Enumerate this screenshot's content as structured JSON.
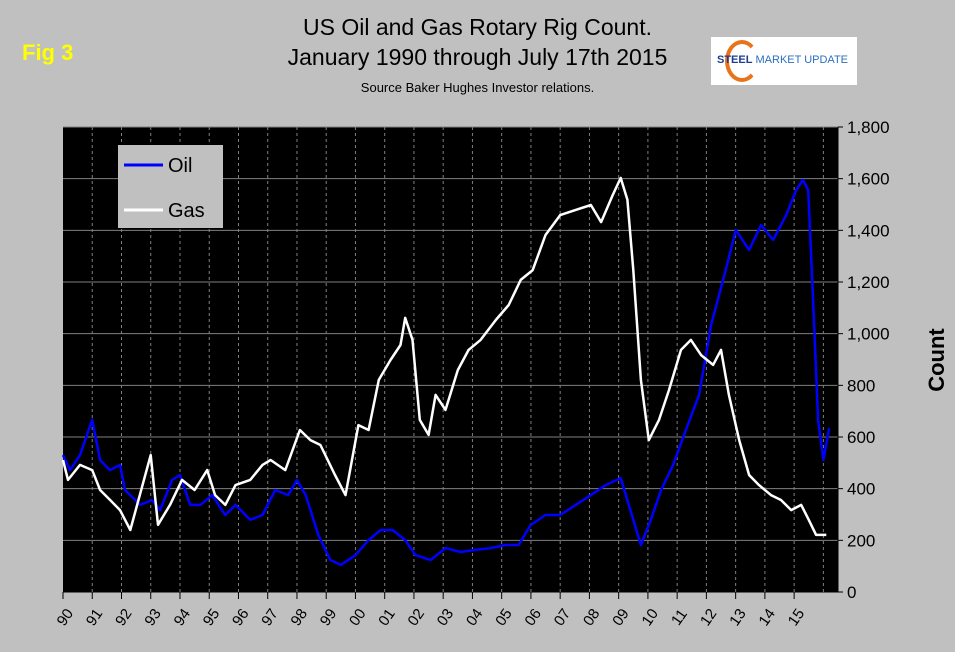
{
  "figure_label": "Fig 3",
  "logo": {
    "text_bold": "STEEL",
    "text_rest": "MARKET UPDATE"
  },
  "chart_data": {
    "type": "line",
    "title": "US Oil and Gas Rotary Rig Count.",
    "subtitle": "January 1990 through July 17th 2015",
    "source": "Source Baker Hughes Investor relations.",
    "xlabel": "",
    "ylabel": "Count",
    "xlim": [
      1990,
      2016.5
    ],
    "ylim": [
      0,
      1800
    ],
    "x_tick_labels": [
      "90",
      "91",
      "92",
      "93",
      "94",
      "95",
      "96",
      "97",
      "98",
      "99",
      "00",
      "01",
      "02",
      "03",
      "04",
      "05",
      "06",
      "07",
      "08",
      "09",
      "10",
      "11",
      "12",
      "13",
      "14",
      "15"
    ],
    "y_ticks": [
      0,
      200,
      400,
      600,
      800,
      1000,
      1200,
      1400,
      1600,
      1800
    ],
    "y_tick_labels": [
      "0",
      "200",
      "400",
      "600",
      "800",
      "1,000",
      "1,200",
      "1,400",
      "1,600",
      "1,800"
    ],
    "grid": true,
    "background": "#000000",
    "legend": {
      "placement": "top-left"
    },
    "series": [
      {
        "name": "Oil",
        "color": "#0000ff",
        "x": [
          1990,
          1990.24,
          1990.58,
          1991,
          1991.27,
          1991.6,
          1991.95,
          1992.12,
          1992.64,
          1993.05,
          1993.32,
          1993.73,
          1994,
          1994.35,
          1994.7,
          1995.1,
          1995.55,
          1995.9,
          1996.4,
          1996.82,
          1997.26,
          1997.7,
          1998,
          1998.3,
          1998.73,
          1999.14,
          1999.5,
          2000,
          2000.45,
          2000.86,
          2001.27,
          2001.7,
          2002.05,
          2002.57,
          2003.08,
          2003.6,
          2004.1,
          2004.62,
          2005.13,
          2005.58,
          2005.99,
          2006.5,
          2007,
          2007.53,
          2008.05,
          2008.56,
          2009.07,
          2009.5,
          2009.76,
          2010.1,
          2010.45,
          2010.86,
          2011.3,
          2011.75,
          2012.16,
          2012.57,
          2013.01,
          2013.46,
          2013.87,
          2014.28,
          2014.73,
          2015.07,
          2015.3,
          2015.48,
          2015.65,
          2015.82,
          2016,
          2016.2
        ],
        "y": [
          530,
          472,
          530,
          666,
          511,
          472,
          492,
          395,
          337,
          356,
          317,
          434,
          453,
          337,
          337,
          375,
          298,
          337,
          279,
          298,
          395,
          375,
          434,
          375,
          221,
          124,
          105,
          143,
          201,
          240,
          240,
          201,
          143,
          124,
          170,
          155,
          163,
          170,
          182,
          182,
          259,
          298,
          298,
          337,
          375,
          414,
          441,
          279,
          182,
          279,
          395,
          492,
          627,
          763,
          1034,
          1208,
          1401,
          1324,
          1421,
          1363,
          1459,
          1556,
          1595,
          1556,
          1130,
          666,
          511,
          635
        ]
      },
      {
        "name": "Gas",
        "color": "#ffffff",
        "x": [
          1990,
          1990.17,
          1990.58,
          1991,
          1991.27,
          1991.61,
          1991.95,
          1992.3,
          1993,
          1993.25,
          1993.66,
          1994.07,
          1994.5,
          1994.93,
          1995.2,
          1995.55,
          1995.9,
          1996.4,
          1996.82,
          1997.1,
          1997.6,
          1998.1,
          1998.46,
          1998.8,
          1999.3,
          1999.66,
          2000.1,
          2000.45,
          2000.8,
          2001.2,
          2001.54,
          2001.7,
          2001.95,
          2002.2,
          2002.5,
          2002.74,
          2003.08,
          2003.5,
          2003.87,
          2004.28,
          2004.8,
          2005.24,
          2005.65,
          2006.06,
          2006.5,
          2007,
          2007.53,
          2008.05,
          2008.4,
          2008.8,
          2009.07,
          2009.3,
          2009.5,
          2009.76,
          2010.03,
          2010.38,
          2010.72,
          2011.13,
          2011.47,
          2011.82,
          2012.23,
          2012.5,
          2012.77,
          2013.12,
          2013.46,
          2013.8,
          2014.21,
          2014.55,
          2014.9,
          2015.24,
          2015.5,
          2015.75,
          2016.1
        ],
        "y": [
          511,
          434,
          492,
          472,
          395,
          356,
          317,
          240,
          530,
          260,
          337,
          434,
          395,
          472,
          375,
          337,
          414,
          434,
          492,
          511,
          472,
          627,
          588,
          569,
          453,
          375,
          646,
          627,
          821,
          898,
          956,
          1061,
          976,
          666,
          608,
          763,
          705,
          859,
          937,
          976,
          1053,
          1111,
          1208,
          1246,
          1382,
          1459,
          1479,
          1498,
          1432,
          1537,
          1603,
          1518,
          1246,
          821,
          588,
          666,
          782,
          937,
          976,
          917,
          879,
          937,
          763,
          588,
          453,
          414,
          375,
          356,
          317,
          337,
          279,
          221,
          221
        ]
      }
    ]
  }
}
